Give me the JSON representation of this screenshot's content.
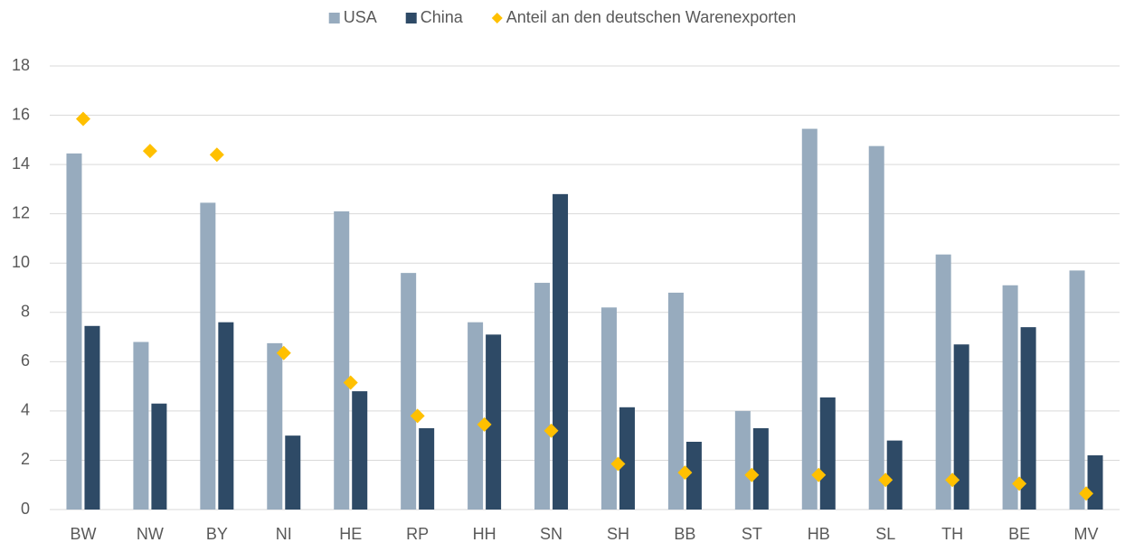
{
  "chart_data": {
    "type": "bar",
    "categories": [
      "BW",
      "NW",
      "BY",
      "NI",
      "HE",
      "RP",
      "HH",
      "SN",
      "SH",
      "BB",
      "ST",
      "HB",
      "SL",
      "TH",
      "BE",
      "MV"
    ],
    "series": [
      {
        "name": "USA",
        "color": "#97abbe",
        "kind": "bar",
        "values": [
          14.45,
          6.8,
          12.45,
          6.75,
          12.1,
          9.6,
          7.6,
          9.2,
          8.2,
          8.8,
          4.0,
          15.45,
          14.75,
          10.35,
          9.1,
          9.7
        ]
      },
      {
        "name": "China",
        "color": "#2e4a66",
        "kind": "bar",
        "values": [
          7.45,
          4.3,
          7.6,
          3.0,
          4.8,
          3.3,
          7.1,
          12.8,
          4.15,
          2.75,
          3.3,
          4.55,
          2.8,
          6.7,
          7.4,
          2.2
        ]
      },
      {
        "name": "Anteil an den deutschen Warenexporten",
        "color": "#ffc000",
        "kind": "marker",
        "values": [
          15.85,
          14.55,
          14.4,
          6.35,
          5.15,
          3.8,
          3.45,
          3.2,
          1.85,
          1.5,
          1.4,
          1.4,
          1.2,
          1.2,
          1.05,
          0.65
        ]
      }
    ],
    "ylim": [
      0,
      18
    ],
    "yticks": [
      0,
      2,
      4,
      6,
      8,
      10,
      12,
      14,
      16,
      18
    ],
    "grid": true,
    "legend": "top"
  }
}
